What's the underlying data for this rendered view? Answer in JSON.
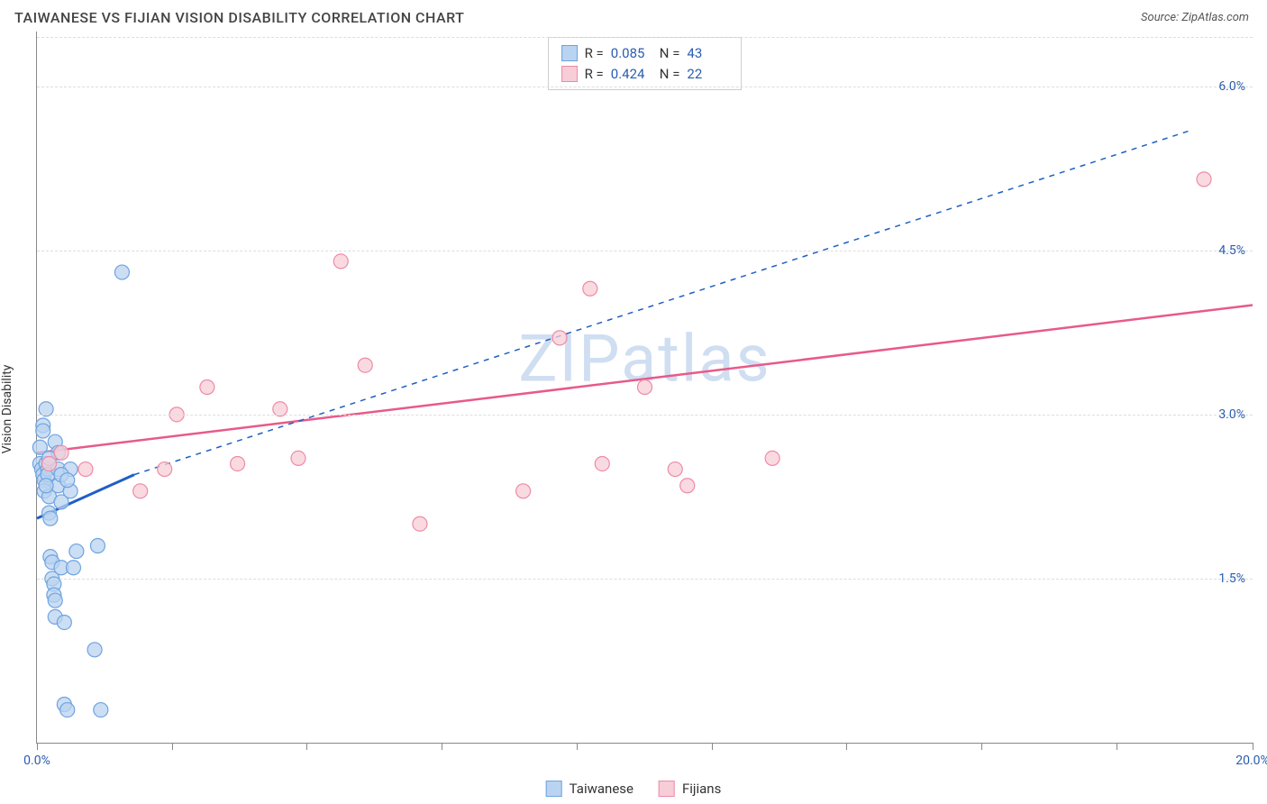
{
  "header": {
    "title": "TAIWANESE VS FIJIAN VISION DISABILITY CORRELATION CHART",
    "source": "Source: ZipAtlas.com"
  },
  "axes": {
    "y_label": "Vision Disability",
    "x_min": 0.0,
    "x_max": 20.0,
    "y_min": 0.0,
    "y_max": 6.5,
    "y_ticks": [
      1.5,
      3.0,
      4.5,
      6.0
    ],
    "y_tick_labels": [
      "1.5%",
      "3.0%",
      "4.5%",
      "6.0%"
    ],
    "x_ticks": [
      0,
      2.22,
      4.44,
      6.66,
      8.88,
      11.1,
      13.32,
      15.54,
      17.76,
      20.0
    ],
    "x_min_label": "0.0%",
    "x_max_label": "20.0%"
  },
  "watermark": "ZIPatlas",
  "series": {
    "taiwanese": {
      "label": "Taiwanese",
      "color_fill": "#b9d3f0",
      "color_stroke": "#6ea3e0",
      "trend_color": "#1f5fc4",
      "marker_radius": 8,
      "R": "0.085",
      "N": "43",
      "trend": {
        "x1": 0.0,
        "y1": 2.05,
        "x2": 1.6,
        "y2": 2.45
      },
      "trend_ext": {
        "x1": 1.6,
        "y1": 2.45,
        "x2": 19.0,
        "y2": 5.6
      },
      "points": [
        [
          0.05,
          2.7
        ],
        [
          0.05,
          2.55
        ],
        [
          0.08,
          2.5
        ],
        [
          0.1,
          2.9
        ],
        [
          0.1,
          2.85
        ],
        [
          0.1,
          2.45
        ],
        [
          0.12,
          2.4
        ],
        [
          0.12,
          2.3
        ],
        [
          0.15,
          3.05
        ],
        [
          0.15,
          2.55
        ],
        [
          0.18,
          2.5
        ],
        [
          0.18,
          2.45
        ],
        [
          0.2,
          2.25
        ],
        [
          0.2,
          2.1
        ],
        [
          0.22,
          1.7
        ],
        [
          0.25,
          1.65
        ],
        [
          0.25,
          1.5
        ],
        [
          0.28,
          1.45
        ],
        [
          0.28,
          1.35
        ],
        [
          0.3,
          1.3
        ],
        [
          0.3,
          1.15
        ],
        [
          0.35,
          2.5
        ],
        [
          0.35,
          2.35
        ],
        [
          0.4,
          2.2
        ],
        [
          0.4,
          1.6
        ],
        [
          0.45,
          1.1
        ],
        [
          0.45,
          0.35
        ],
        [
          0.5,
          0.3
        ],
        [
          0.55,
          2.5
        ],
        [
          0.6,
          1.6
        ],
        [
          0.65,
          1.75
        ],
        [
          0.95,
          0.85
        ],
        [
          1.0,
          1.8
        ],
        [
          1.05,
          0.3
        ],
        [
          1.4,
          4.3
        ],
        [
          0.3,
          2.75
        ],
        [
          0.35,
          2.65
        ],
        [
          0.15,
          2.35
        ],
        [
          0.4,
          2.45
        ],
        [
          0.22,
          2.05
        ],
        [
          0.55,
          2.3
        ],
        [
          0.5,
          2.4
        ],
        [
          0.2,
          2.6
        ]
      ]
    },
    "fijians": {
      "label": "Fijians",
      "color_fill": "#f7cdd7",
      "color_stroke": "#ef8aa6",
      "trend_color": "#e85a88",
      "marker_radius": 8,
      "R": "0.424",
      "N": "22",
      "trend": {
        "x1": 0.0,
        "y1": 2.65,
        "x2": 20.0,
        "y2": 4.0
      },
      "points": [
        [
          0.4,
          2.65
        ],
        [
          0.8,
          2.5
        ],
        [
          1.7,
          2.3
        ],
        [
          2.1,
          2.5
        ],
        [
          2.3,
          3.0
        ],
        [
          2.8,
          3.25
        ],
        [
          4.0,
          3.05
        ],
        [
          4.3,
          2.6
        ],
        [
          5.0,
          4.4
        ],
        [
          5.4,
          3.45
        ],
        [
          6.3,
          2.0
        ],
        [
          8.0,
          2.3
        ],
        [
          8.6,
          3.7
        ],
        [
          9.1,
          4.15
        ],
        [
          9.3,
          2.55
        ],
        [
          10.0,
          3.25
        ],
        [
          10.5,
          2.5
        ],
        [
          10.7,
          2.35
        ],
        [
          12.1,
          2.6
        ],
        [
          19.2,
          5.15
        ],
        [
          3.3,
          2.55
        ],
        [
          0.2,
          2.55
        ]
      ]
    }
  },
  "legend": {
    "items": [
      {
        "label": "Taiwanese",
        "fill": "#b9d3f0",
        "stroke": "#6ea3e0"
      },
      {
        "label": "Fijians",
        "fill": "#f7cdd7",
        "stroke": "#ef8aa6"
      }
    ]
  }
}
